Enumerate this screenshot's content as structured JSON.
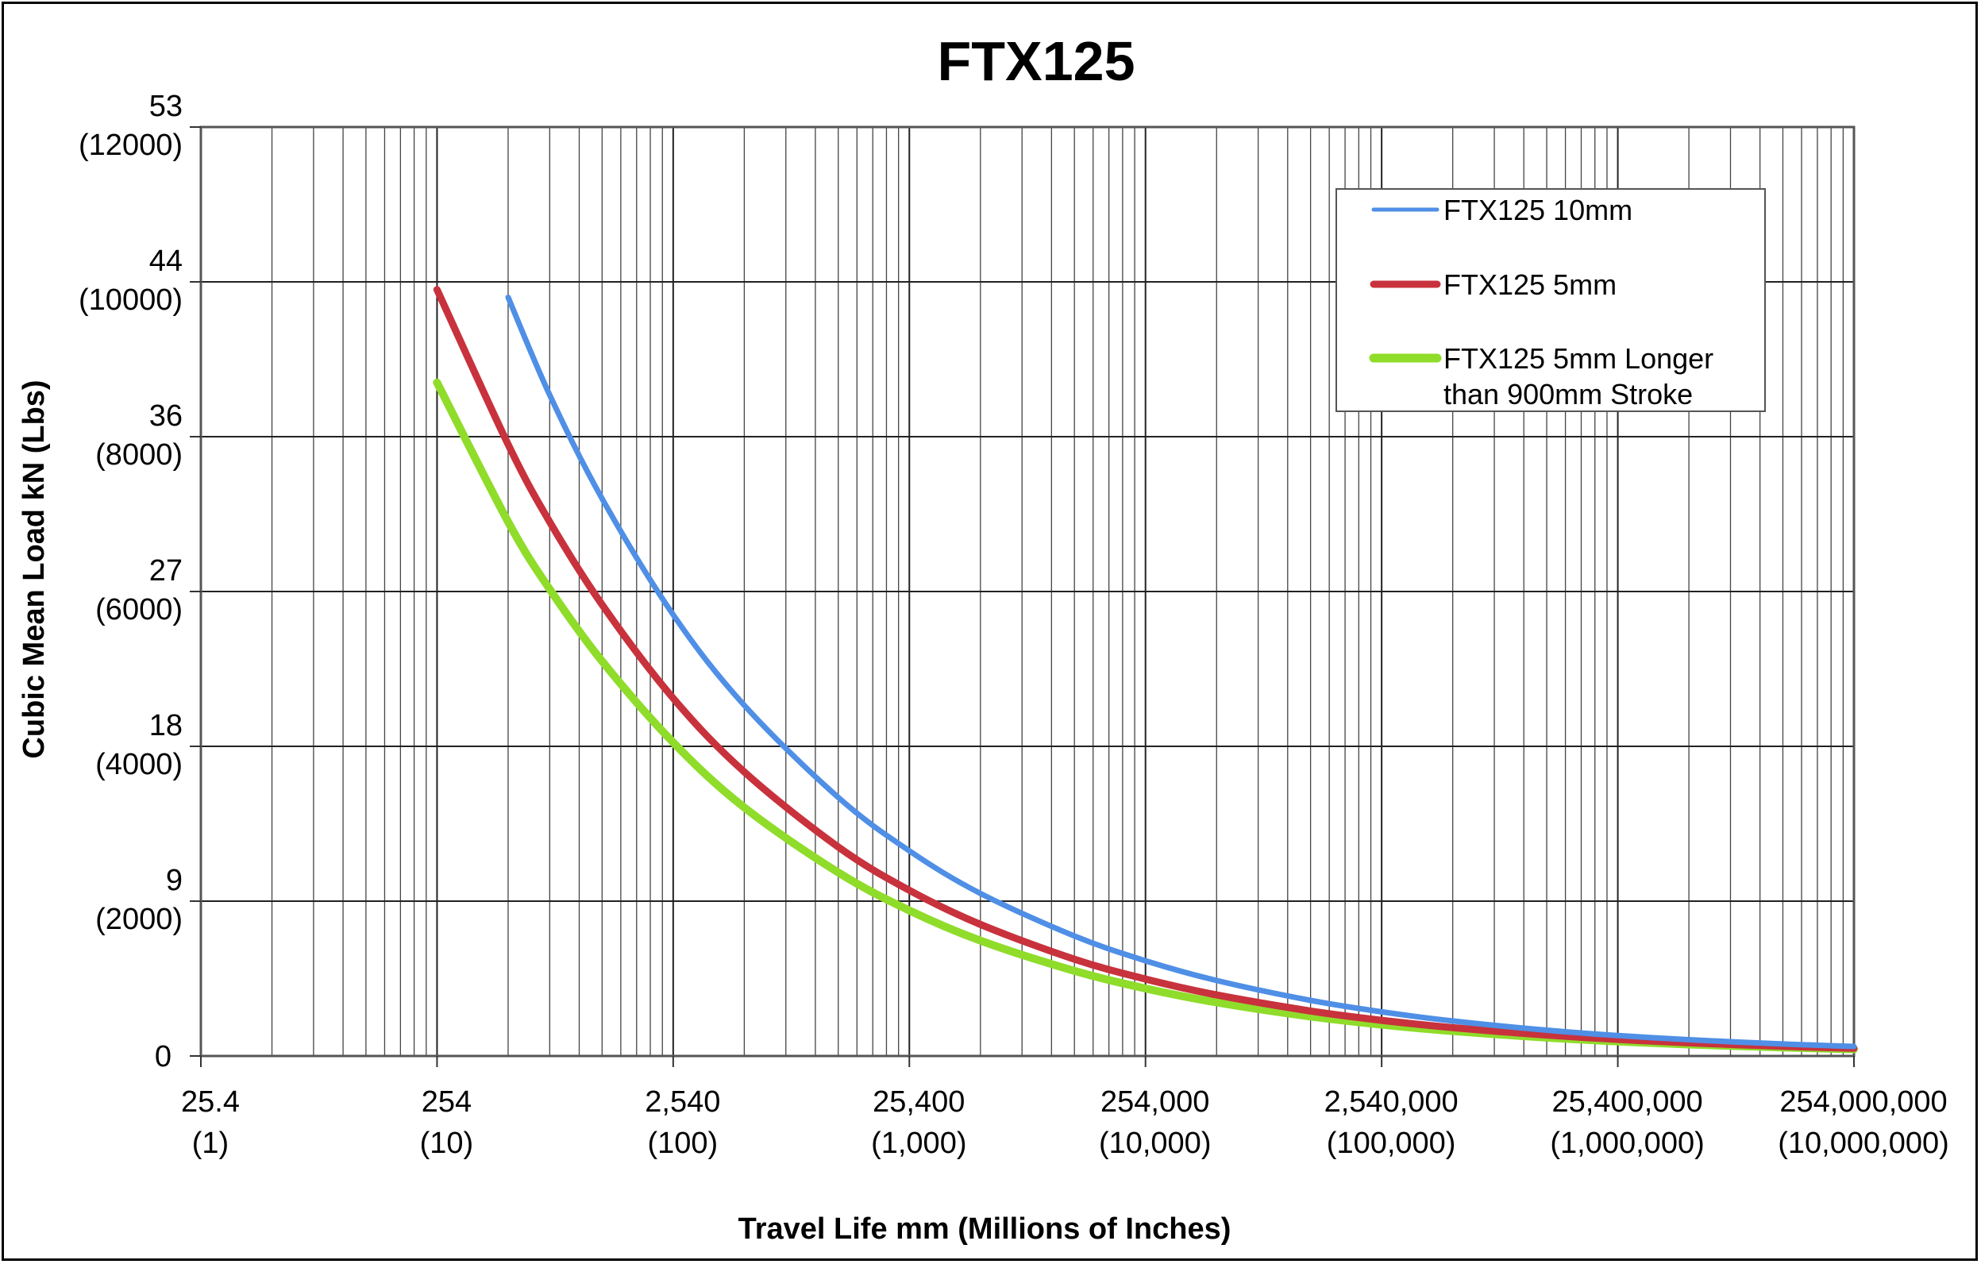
{
  "chart_data": {
    "type": "line",
    "title": "FTX125",
    "xlabel": "Travel Life mm (Millions of Inches)",
    "ylabel": "Cubic Mean Load kN (Lbs)",
    "x_scale": "log",
    "xlim": [
      1,
      10000000
    ],
    "ylim": [
      0,
      12000
    ],
    "grid": true,
    "legend_position": "top-right",
    "x_ticks": [
      {
        "value": 1,
        "line1": "25.4",
        "line2": "(1)"
      },
      {
        "value": 10,
        "line1": "254",
        "line2": "(10)"
      },
      {
        "value": 100,
        "line1": "2,540",
        "line2": "(100)"
      },
      {
        "value": 1000,
        "line1": "25,400",
        "line2": "(1,000)"
      },
      {
        "value": 10000,
        "line1": "254,000",
        "line2": "(10,000)"
      },
      {
        "value": 100000,
        "line1": "2,540,000",
        "line2": "(100,000)"
      },
      {
        "value": 1000000,
        "line1": "25,400,000",
        "line2": "(1,000,000)"
      },
      {
        "value": 10000000,
        "line1": "254,000,000",
        "line2": "(10,000,000)"
      }
    ],
    "y_ticks": [
      {
        "value": 0,
        "line1": "0",
        "line2": ""
      },
      {
        "value": 2000,
        "line1": "9",
        "line2": "(2000)"
      },
      {
        "value": 4000,
        "line1": "18",
        "line2": "(4000)"
      },
      {
        "value": 6000,
        "line1": "27",
        "line2": "(6000)"
      },
      {
        "value": 8000,
        "line1": "36",
        "line2": "(8000)"
      },
      {
        "value": 10000,
        "line1": "44",
        "line2": "(10000)"
      },
      {
        "value": 12000,
        "line1": "53",
        "line2": "(12000)"
      }
    ],
    "series": [
      {
        "name": "FTX125 10mm",
        "color": "#4f8fe6",
        "x": [
          20,
          30,
          50,
          100,
          200,
          500,
          1000,
          2000,
          5000,
          10000,
          20000,
          50000,
          100000,
          200000,
          500000,
          1000000,
          2000000,
          5000000,
          10000000
        ],
        "y": [
          9800,
          8540,
          7200,
          5700,
          4530,
          3340,
          2650,
          2100,
          1550,
          1230,
          975,
          718,
          570,
          452,
          333,
          264,
          210,
          155,
          123
        ]
      },
      {
        "name": "FTX125 5mm",
        "color": "#c8323c",
        "x": [
          10,
          20,
          30,
          50,
          100,
          200,
          500,
          1000,
          2000,
          5000,
          10000,
          20000,
          50000,
          100000,
          200000,
          500000,
          1000000,
          2000000,
          5000000,
          10000000
        ],
        "y": [
          9900,
          7900,
          6900,
          5830,
          4620,
          3670,
          2700,
          2140,
          1700,
          1250,
          994,
          789,
          581,
          461,
          366,
          270,
          214,
          170,
          125,
          99
        ]
      },
      {
        "name": "FTX125 5mm Longer than 900mm Stroke",
        "color": "#8fdc2a",
        "x": [
          10,
          20,
          30,
          50,
          100,
          200,
          500,
          1000,
          2000,
          5000,
          10000,
          20000,
          50000,
          100000,
          200000,
          500000,
          1000000,
          2000000,
          5000000,
          10000000
        ],
        "y": [
          8700,
          6900,
          6030,
          5100,
          4050,
          3210,
          2370,
          1880,
          1490,
          1100,
          872,
          692,
          510,
          405,
          321,
          237,
          188,
          149,
          110,
          87
        ]
      }
    ],
    "legend": [
      {
        "line1": "FTX125 10mm",
        "line2": ""
      },
      {
        "line1": "FTX125 5mm",
        "line2": ""
      },
      {
        "line1": "FTX125 5mm Longer",
        "line2": "than 900mm Stroke"
      }
    ]
  }
}
